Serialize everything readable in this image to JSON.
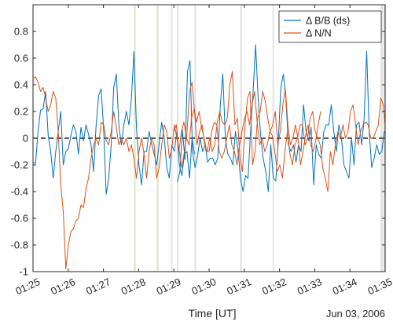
{
  "chart_data": {
    "type": "line",
    "xlabel": "Time [UT]",
    "date_label": "Jun 03, 2006",
    "xlim": [
      "01:25",
      "01:35"
    ],
    "ylim": [
      -1,
      1
    ],
    "x_ticks": [
      "01:25",
      "01:26",
      "01:27",
      "01:28",
      "01:29",
      "01:30",
      "01:31",
      "01:32",
      "01:33",
      "01:34",
      "01:35"
    ],
    "y_ticks": [
      "-1",
      "-0.8",
      "-0.6",
      "-0.4",
      "-0.2",
      "0",
      "0.2",
      "0.4",
      "0.6",
      "0.8"
    ],
    "zero_line": "dashed",
    "legend_position": "top-right",
    "highlight_bands": [
      {
        "start": "01:27:52",
        "end": "01:27:55",
        "color": "#dbe8c8"
      },
      {
        "start": "01:28:31",
        "end": "01:28:34",
        "color": "#dbe8c8"
      },
      {
        "start": "01:28:55",
        "end": "01:28:57",
        "color": "#e3e3e3"
      },
      {
        "start": "01:29:05",
        "end": "01:29:07",
        "color": "#e3e3e3"
      },
      {
        "start": "01:29:35",
        "end": "01:29:37",
        "color": "#e3e3e3"
      },
      {
        "start": "01:30:53",
        "end": "01:30:56",
        "color": "#e3e3e3"
      },
      {
        "start": "01:31:48",
        "end": "01:31:50",
        "color": "#e3e3e3"
      },
      {
        "start": "01:34:52",
        "end": "01:34:56",
        "color": "#e3e3e3"
      },
      {
        "start": "01:34:57",
        "end": "01:35:00",
        "color": "#e3e3e3"
      }
    ],
    "series": [
      {
        "name": "Δ B/B (ds)",
        "color": "#0072bd",
        "segments": [
          {
            "t0": "01:25:00",
            "dt_s": 4.3,
            "values": [
              -0.18,
              -0.19,
              0.05,
              0.21,
              0.22,
              0.35,
              0.02,
              -0.1,
              -0.3,
              -0.1,
              0.05,
              0.2,
              -0.2,
              -0.1,
              -0.08,
              0.02,
              0.1,
              0.05,
              -0.12,
              0.08,
              -0.02,
              0.1,
              0.03,
              -0.05,
              -0.25,
              0.1,
              0.32,
              0.37,
              0.06,
              -0.42,
              -0.3,
              -0.05,
              0.38,
              0.48,
              0.1,
              -0.05,
              0.1,
              0.2,
              0.1,
              0.3,
              0.65,
              0.08,
              -0.2,
              -0.35,
              -0.1,
              -0.1,
              0.05,
              -0.04,
              -0.12,
              -0.2,
              -0.04,
              0.12,
              0.0,
              -0.22,
              -0.3,
              -0.05,
              -0.1,
              0.05,
              -0.2,
              -0.28,
              -0.12,
              -0.1,
              -0.3,
              0.0,
              -0.12
            ]
          },
          {
            "t0": "01:29:06",
            "dt_s": 4.3,
            "values": [
              -0.33,
              -0.25,
              0.06,
              -0.16,
              0.5,
              0.58,
              -0.1,
              -0.22,
              -0.13,
              0.0,
              -0.1,
              -0.05,
              -0.18,
              -0.15,
              -0.15,
              -0.2,
              -0.15,
              0.25,
              0.48,
              0.0,
              -0.12,
              -0.15,
              -0.2,
              0.05,
              -0.08,
              -0.3,
              -0.4,
              -0.28,
              -0.3,
              0.05,
              0.35,
              0.7,
              0.3,
              0.02,
              -0.15,
              -0.25,
              -0.4,
              -0.05,
              -0.3,
              -0.32,
              -0.02,
              0.38,
              0.48,
              0.3,
              -0.05,
              -0.1,
              -0.05,
              -0.18,
              -0.05,
              -0.1,
              0.25,
              0.05,
              -0.02,
              0.08,
              -0.35,
              -0.05,
              -0.12,
              -0.15,
              0.05,
              0.1,
              0.1,
              0.25,
              0.05,
              -0.1,
              0.1,
              0.0,
              -0.2,
              -0.25,
              -0.3,
              0.0,
              -0.2,
              0.1,
              0.12,
              -0.05,
              0.15,
              0.65,
              0.05,
              -0.22,
              -0.15,
              -0.05,
              -0.12,
              -0.1,
              0.05,
              0.05,
              0.25,
              0.35,
              0.1,
              -0.05,
              -0.25,
              -0.25,
              0.1,
              -0.1,
              -0.15,
              0.05,
              0.0,
              -0.05,
              0.05,
              -0.1,
              -0.05,
              0.12,
              -0.08,
              0.05,
              0.02,
              0.08,
              0.1,
              -0.04,
              0.1,
              -0.1,
              0.05,
              0.0,
              -0.1,
              -0.05,
              0.12,
              0.1,
              0.05,
              -0.15,
              0.05,
              0.12,
              0.0,
              -0.06,
              0.05,
              0.2,
              0.1,
              0.05,
              0.13,
              0.18,
              0.25,
              0.05,
              -0.05,
              0.05,
              -0.02,
              0.05,
              0.1,
              0.02,
              -0.05,
              -0.15,
              -0.1,
              -0.2,
              -0.25,
              -0.3,
              -0.42,
              -0.55,
              -0.3
            ]
          }
        ]
      },
      {
        "name": "Δ N/N",
        "color": "#d95319",
        "segments": [
          {
            "t0": "01:25:00",
            "dt_s": 4.3,
            "values": [
              0.45,
              0.46,
              0.42,
              0.35,
              0.38,
              0.3,
              0.2,
              0.25,
              0.35,
              0.3,
              0.05,
              -0.35,
              -0.55,
              -0.98,
              -0.8,
              -0.7,
              -0.68,
              -0.62,
              -0.6,
              -0.5,
              -0.52,
              -0.38,
              -0.3,
              -0.15,
              -0.05,
              0.0,
              -0.05,
              0.12,
              0.1,
              -0.02,
              -0.05,
              0.05,
              0.2,
              0.08,
              -0.05,
              0.0,
              -0.05,
              0.0,
              -0.1,
              -0.05,
              -0.15,
              -0.3,
              -0.1,
              0.0,
              -0.12,
              -0.3,
              -0.1,
              0.0,
              -0.05,
              -0.3,
              -0.22,
              -0.05,
              0.1,
              0.05,
              -0.15,
              -0.08,
              0.1,
              0.0,
              -0.1,
              -0.22,
              -0.1,
              0.04,
              0.35,
              0.42,
              0.2,
              -0.05,
              0.05,
              0.1,
              -0.05,
              -0.1,
              0.0,
              -0.1,
              -0.05,
              0.12,
              0.2,
              0.12,
              0.1,
              0.15,
              0.4,
              0.5,
              0.1,
              0.15,
              -0.15,
              -0.25,
              0.1,
              0.3,
              0.35,
              -0.2,
              -0.1,
              0.15,
              0.2,
              0.35,
              0.28,
              0.15,
              0.05,
              0.1,
              0.2,
              -0.05,
              0.05,
              0.25,
              0.37,
              0.1,
              -0.05,
              0.0,
              0.1,
              0.0,
              -0.2,
              -0.1,
              0.02,
              0.1,
              -0.05,
              -0.1,
              -0.02,
              0.1,
              0.2
            ]
          },
          {
            "t0": "01:29:00",
            "dt_s": 4.3,
            "values": [
              0.05,
              0.1,
              -0.1,
              0.05,
              0.12,
              0.0,
              -0.05,
              0.15,
              0.22,
              0.12,
              0.2,
              0.08,
              0.0,
              -0.1,
              -0.1,
              0.05,
              0.12,
              0.1,
              -0.1,
              -0.15,
              -0.1,
              0.0,
              0.1,
              -0.05,
              -0.1,
              -0.2,
              -0.05,
              0.05,
              0.15,
              0.2,
              0.1,
              0.25,
              0.35,
              0.12,
              -0.05,
              0.0,
              -0.1,
              -0.05,
              0.05,
              0.02,
              -0.1,
              -0.25,
              -0.2,
              -0.3,
              -0.1,
              0.05,
              -0.12,
              -0.2,
              -0.05,
              0.0,
              0.1,
              0.1,
              -0.05,
              0.0,
              0.15,
              0.2,
              0.05,
              0.0,
              -0.05,
              -0.22,
              -0.3,
              -0.4,
              -0.1,
              -0.2,
              -0.05,
              0.05,
              0.0,
              0.1,
              0.0,
              0.05,
              0.2,
              0.25,
              0.1,
              -0.05,
              0.05,
              0.1,
              0.12,
              0.1,
              0.0,
              0.0,
              0.05,
              0.1,
              0.3,
              0.25,
              0.1,
              0.2,
              0.05,
              -0.1,
              -0.2,
              -0.15,
              -0.05,
              -0.1,
              -0.05,
              -0.05,
              0.15,
              0.05,
              0.0,
              -0.1,
              -0.05,
              0.05,
              0.15,
              0.1,
              0.0,
              -0.05,
              0.1,
              0.2,
              0.05,
              -0.05,
              0.05,
              0.1,
              0.1,
              -0.05,
              -0.1,
              0.0,
              0.12,
              0.1,
              0.25,
              0.1,
              0.05,
              -0.15,
              0.1,
              0.15,
              0.35,
              0.2,
              0.1,
              0.0,
              -0.05,
              -0.1,
              -0.1,
              0.1,
              0.1,
              0.3,
              0.35,
              0.2,
              0.1,
              0.05,
              -0.05,
              0.02,
              0.1,
              0.15,
              0.12,
              0.08,
              0.05,
              0.3,
              0.35,
              0.32
            ]
          }
        ]
      }
    ]
  }
}
